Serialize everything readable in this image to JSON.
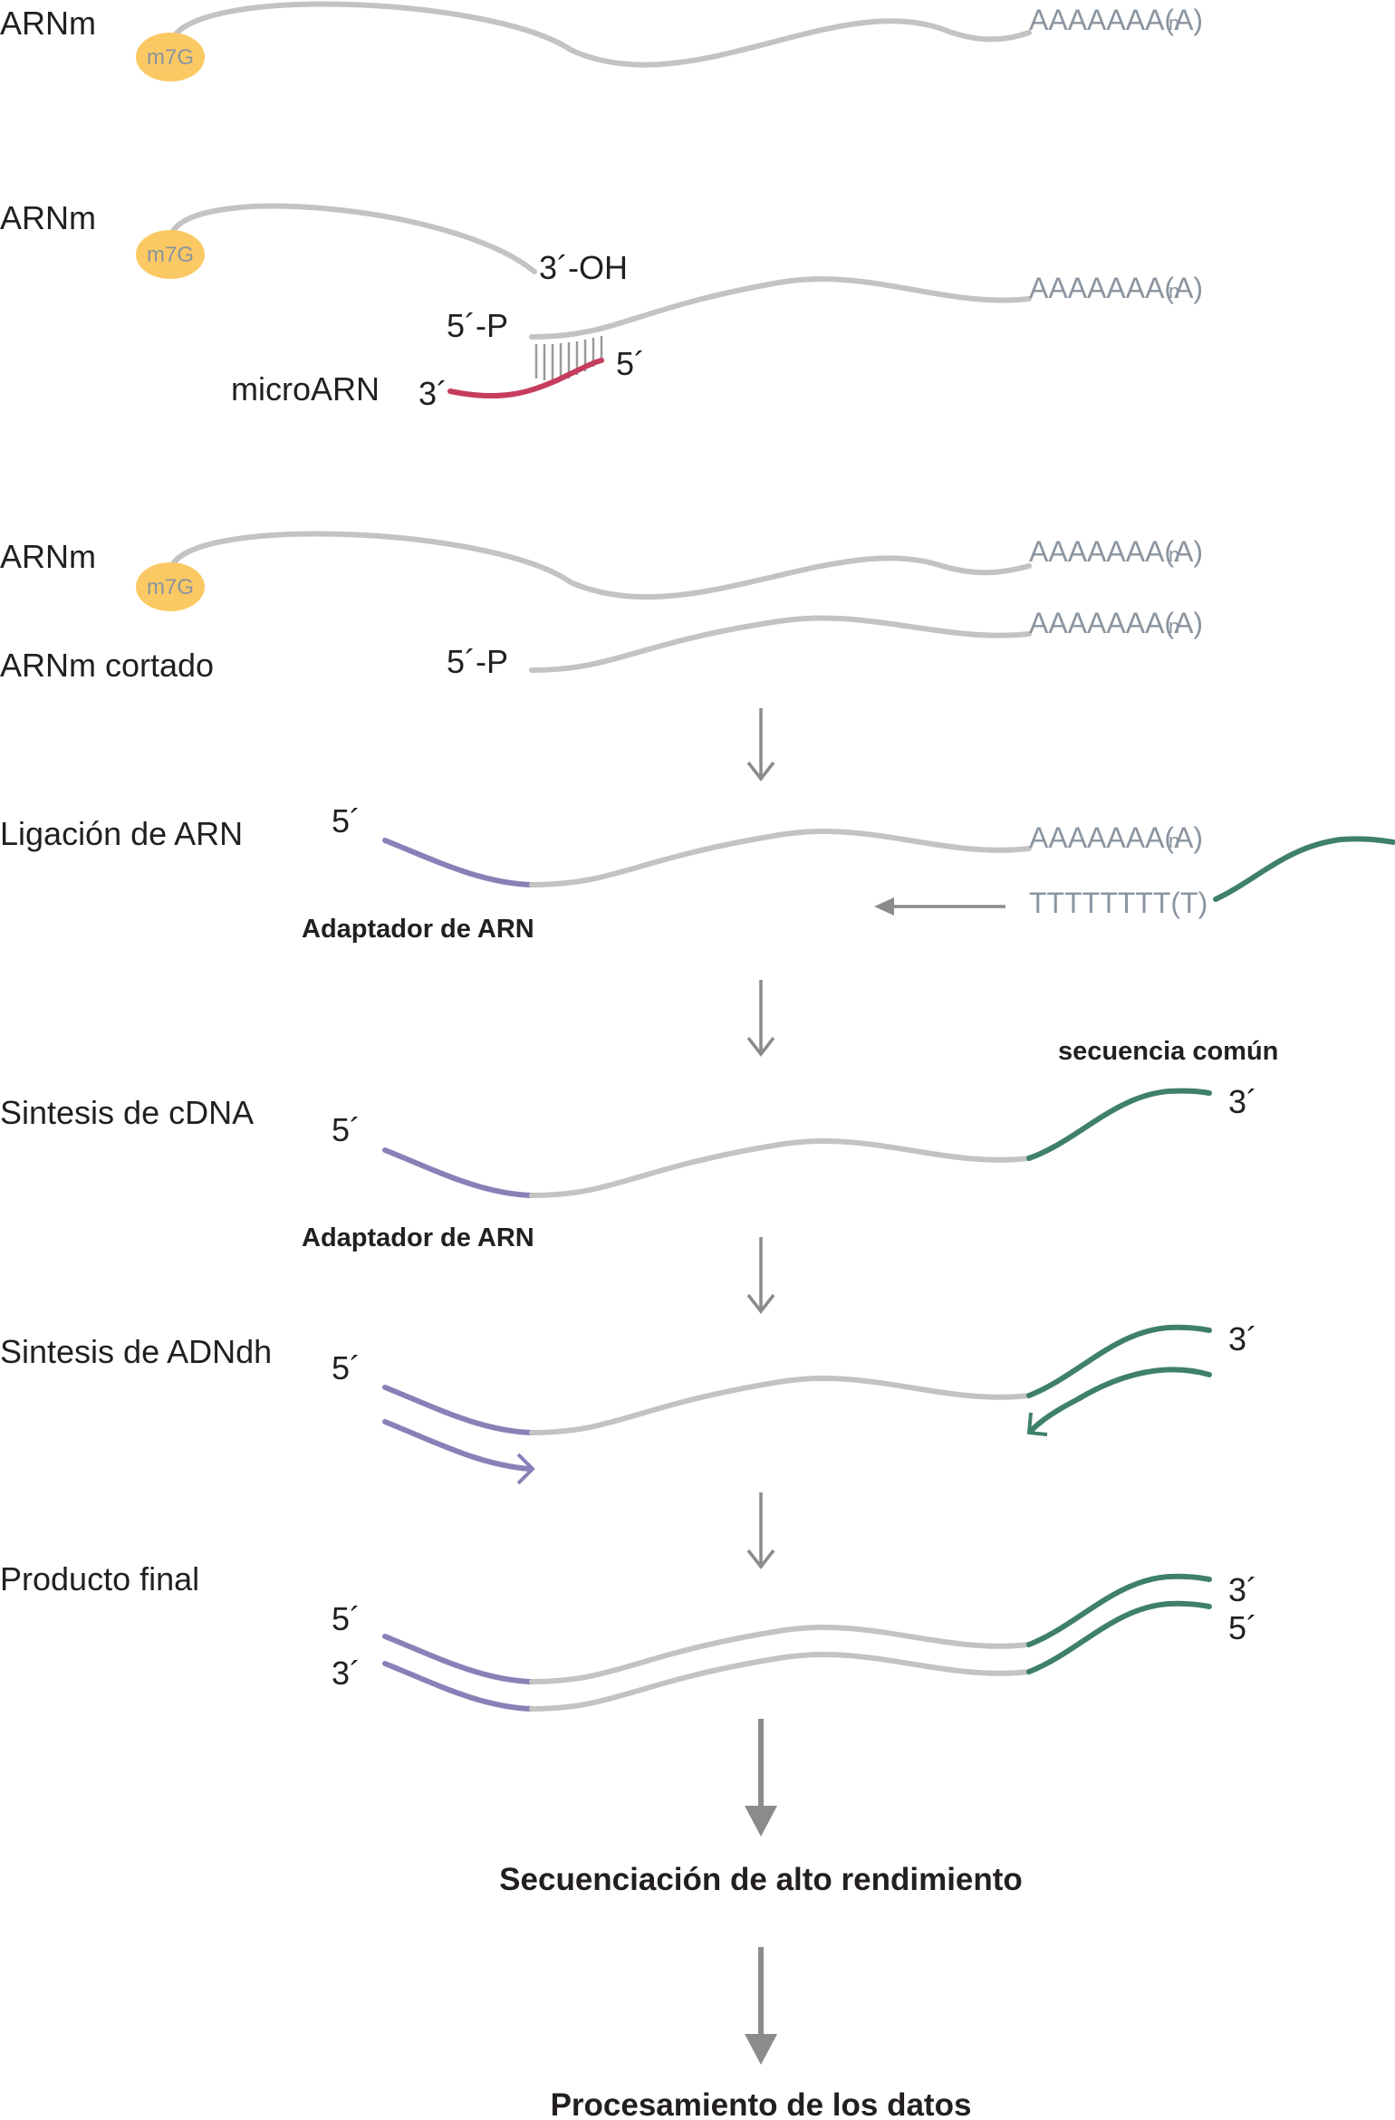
{
  "s1": {
    "label": "ARNm",
    "cap": "m7G",
    "polya": "AAAAAAA(A)",
    "polya_sub": "n"
  },
  "s2": {
    "label": "ARNm",
    "cap": "m7G",
    "oh": "3´-OH",
    "p": "5´-P",
    "polya": "AAAAAAA(A)",
    "polya_sub": "n",
    "mirna": "microARN",
    "mirna3": "3´",
    "mirna5": "5´"
  },
  "s3": {
    "label1": "ARNm",
    "cap": "m7G",
    "polya1": "AAAAAAA(A)",
    "polya1_sub": "n",
    "label2": "ARNm cortado",
    "p": "5´-P",
    "polya2": "AAAAAAA(A)",
    "polya2_sub": "n"
  },
  "s4": {
    "label": "Ligación de ARN",
    "five": "5´",
    "polya": "AAAAAAA(A)",
    "polya_sub": "n",
    "polyt": "TTTTTTTT(T)",
    "adapter": "Adaptador de ARN"
  },
  "s5": {
    "label": "Sintesis de cDNA",
    "five": "5´",
    "common": "secuencia común",
    "three": "3´",
    "adapter": "Adaptador de ARN"
  },
  "s6": {
    "label": "Sintesis de ADNdh",
    "five": "5´",
    "three": "3´"
  },
  "s7": {
    "label": "Producto final",
    "five_l": "5´",
    "three_l": "3´",
    "three_r": "3´",
    "five_r": "5´"
  },
  "final1": "Secuenciación de alto rendimiento",
  "final2": "Procesamiento de los datos",
  "colors": {
    "strand": "#c3c3c3",
    "adapter": "#8a80b8",
    "common": "#3f8068",
    "mirna": "#c63d5e",
    "cap": "#fbc963",
    "arrow": "#8b8b8b"
  }
}
